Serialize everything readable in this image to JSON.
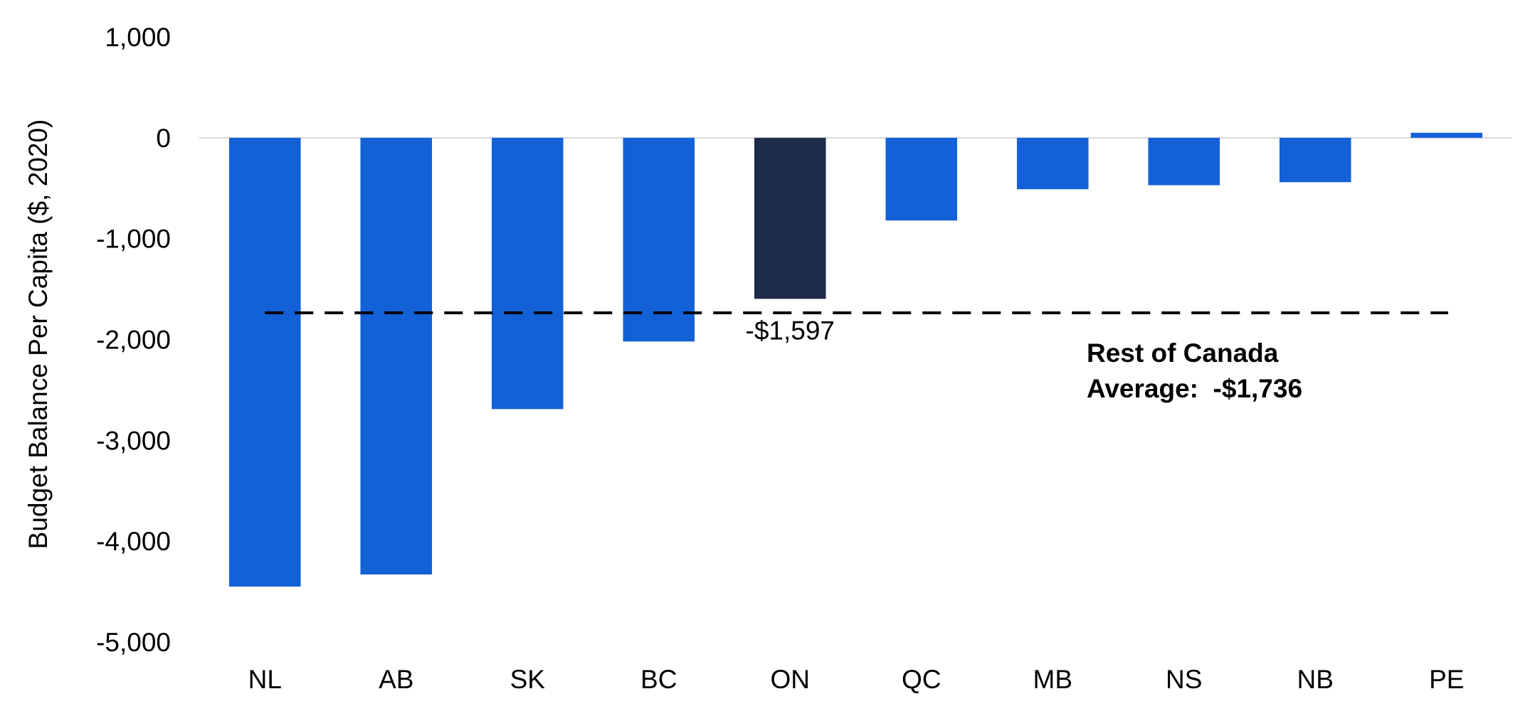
{
  "chart_data": {
    "type": "bar",
    "title": "",
    "xlabel": "",
    "ylabel": "Budget Balance Per Capita ($, 2020)",
    "ylim": [
      -5000,
      1000
    ],
    "yticks": [
      1000,
      0,
      -1000,
      -2000,
      -3000,
      -4000,
      -5000
    ],
    "ytick_labels": [
      "1,000",
      "0",
      "-1,000",
      "-2,000",
      "-3,000",
      "-4,000",
      "-5,000"
    ],
    "categories": [
      "NL",
      "AB",
      "SK",
      "BC",
      "ON",
      "QC",
      "MB",
      "NS",
      "NB",
      "PE"
    ],
    "values": [
      -4450,
      -4330,
      -2690,
      -2020,
      -1597,
      -820,
      -510,
      -470,
      -440,
      50
    ],
    "bar_colors": [
      "#1261D6",
      "#1261D6",
      "#1261D6",
      "#1261D6",
      "#1E2C4A",
      "#1261D6",
      "#1261D6",
      "#1261D6",
      "#1261D6",
      "#1261D6"
    ],
    "data_labels": [
      {
        "category": "ON",
        "text": "-$1,597"
      }
    ],
    "reference_line": {
      "value": -1736,
      "style": "dashed",
      "color": "#000000",
      "label_line1": "Rest of Canada",
      "label_line2": "Average:  -$1,736"
    },
    "grid": false,
    "legend": "none"
  }
}
